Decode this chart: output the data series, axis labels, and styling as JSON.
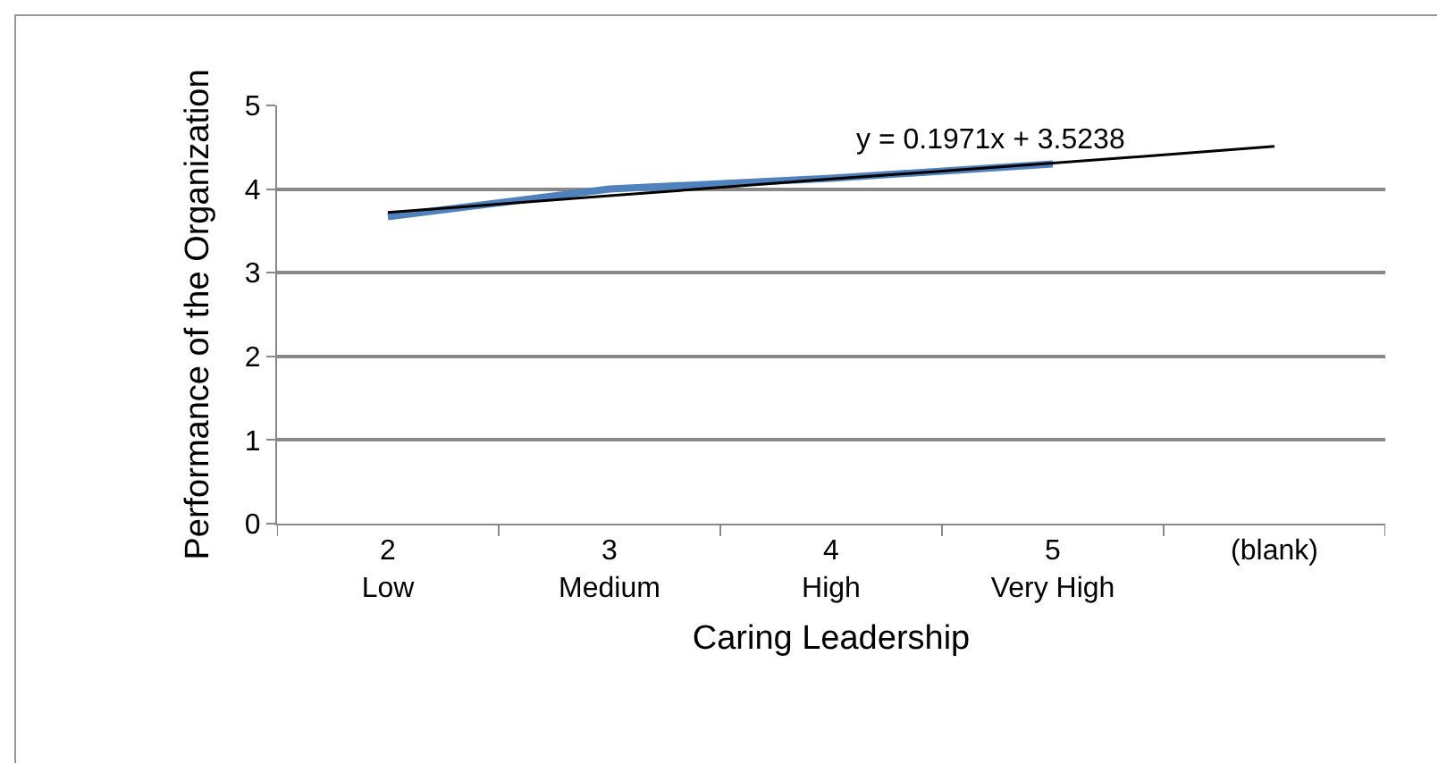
{
  "chart_data": {
    "type": "line",
    "xlabel": "Caring Leadership",
    "ylabel": "Performance of the Organization",
    "categories": [
      "2\nLow",
      "3\nMedium",
      "4\nHigh",
      "5\nVery High",
      "(blank)"
    ],
    "series": [
      {
        "color": "#4f81bd",
        "values": [
          3.67,
          4.0,
          4.13,
          4.3,
          null
        ]
      },
      {
        "color": "#000000",
        "values": [
          3.72,
          3.92,
          4.12,
          4.31,
          4.51
        ]
      }
    ],
    "annotations": [
      "y = 0.1971x + 3.5238"
    ],
    "ylim": [
      0,
      5
    ],
    "yticks": [
      0,
      1,
      2,
      3,
      4,
      5
    ],
    "grid": "y",
    "marker": "none",
    "line_style": "solid"
  }
}
